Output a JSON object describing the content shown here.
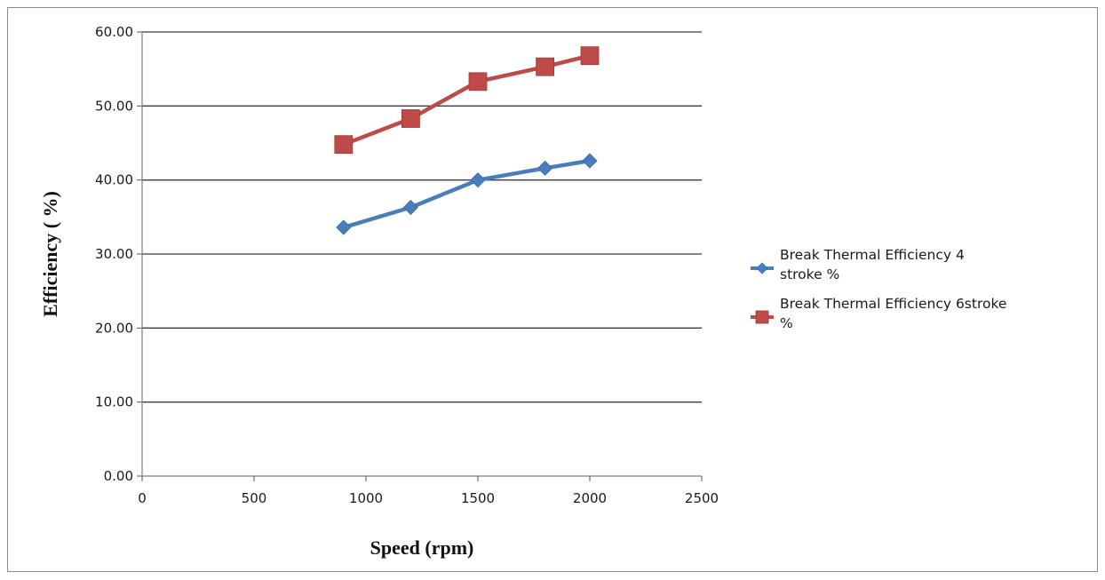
{
  "chart_data": {
    "type": "line",
    "title": "",
    "xlabel": "Speed (rpm)",
    "ylabel": "Efficiency ( %)",
    "xlim": [
      0,
      2500
    ],
    "ylim": [
      0,
      60
    ],
    "x_ticks": [
      "0",
      "500",
      "1000",
      "1500",
      "2000",
      "2500"
    ],
    "y_ticks": [
      "0.00",
      "10.00",
      "20.00",
      "30.00",
      "40.00",
      "50.00",
      "60.00"
    ],
    "grid": "horizontal",
    "legend_position": "right",
    "x": [
      900,
      1200,
      1500,
      1800,
      2000
    ],
    "series": [
      {
        "name_lines": [
          "Break Thermal Efficiency 4",
          "stroke %"
        ],
        "values": [
          33.6,
          36.3,
          40.0,
          41.6,
          42.6
        ],
        "color": "#4a7ebb",
        "marker": "diamond"
      },
      {
        "name_lines": [
          "Break Thermal Efficiency 6stroke",
          "%"
        ],
        "values": [
          44.8,
          48.3,
          53.3,
          55.3,
          56.8
        ],
        "color": "#be4b48",
        "marker": "square"
      }
    ]
  }
}
